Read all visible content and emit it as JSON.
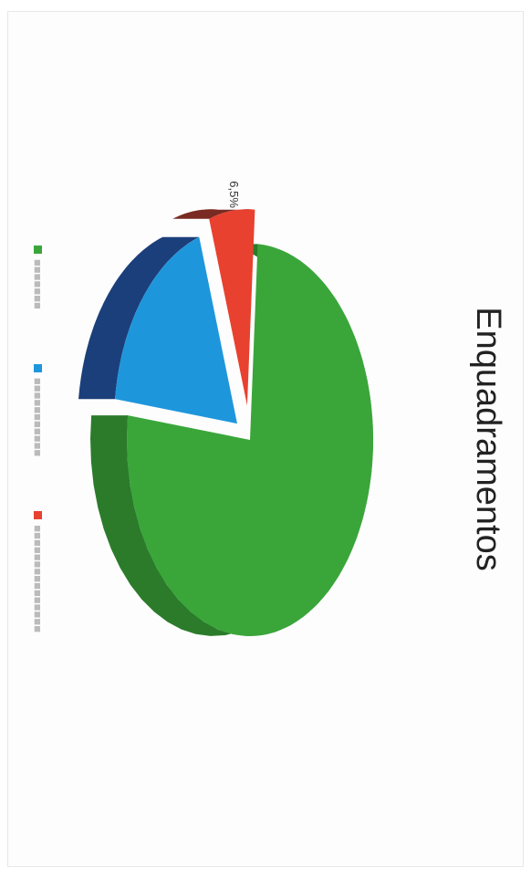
{
  "chart_data": {
    "type": "pie",
    "title": "Enquadramentos",
    "slices": [
      {
        "value": 76,
        "color": "#3aa63a",
        "side": "#2b7b2b"
      },
      {
        "value": 18,
        "color": "#1e96dc",
        "side": "#1b3f7a"
      },
      {
        "value": 6,
        "color": "#e8412f",
        "side": "#7a2a22"
      }
    ],
    "visible_labels": [
      "6,5%"
    ],
    "legend_position": "bottom"
  }
}
